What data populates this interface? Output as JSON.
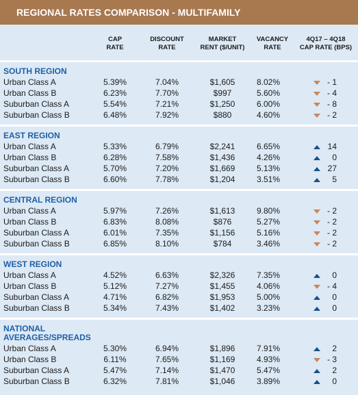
{
  "title": "REGIONAL RATES COMPARISON - MULTIFAMILY",
  "columns": [
    "CAP\nRATE",
    "DISCOUNT\nRATE",
    "MARKET\nRENT ($/UNIT)",
    "VACANCY\nRATE",
    "4Q17 – 4Q18\nCAP RATE (BPS)"
  ],
  "sections": [
    {
      "name": "SOUTH REGION",
      "rows": [
        [
          "Urban Class A",
          "5.39%",
          "7.04%",
          "$1,605",
          "8.02%",
          "- 1"
        ],
        [
          "Urban Class B",
          "6.23%",
          "7.70%",
          "$997",
          "5.60%",
          "- 4"
        ],
        [
          "Suburban Class A",
          "5.54%",
          "7.21%",
          "$1,250",
          "6.00%",
          "- 8"
        ],
        [
          "Suburban Class B",
          "6.48%",
          "7.92%",
          "$880",
          "4.60%",
          "- 2"
        ]
      ]
    },
    {
      "name": "EAST REGION",
      "rows": [
        [
          "Urban Class A",
          "5.33%",
          "6.79%",
          "$2,241",
          "6.65%",
          "14"
        ],
        [
          "Urban Class B",
          "6.28%",
          "7.58%",
          "$1,436",
          "4.26%",
          "0"
        ],
        [
          "Suburban Class A",
          "5.70%",
          "7.20%",
          "$1,669",
          "5.13%",
          "27"
        ],
        [
          "Suburban Class B",
          "6.60%",
          "7.78%",
          "$1,204",
          "3.51%",
          "5"
        ]
      ]
    },
    {
      "name": "CENTRAL REGION",
      "rows": [
        [
          "Urban Class A",
          "5.97%",
          "7.26%",
          "$1,613",
          "9.80%",
          "- 2"
        ],
        [
          "Urban Class B",
          "6.83%",
          "8.08%",
          "$876",
          "5.27%",
          "- 2"
        ],
        [
          "Suburban Class A",
          "6.01%",
          "7.35%",
          "$1,156",
          "5.16%",
          "- 2"
        ],
        [
          "Suburban Class B",
          "6.85%",
          "8.10%",
          "$784",
          "3.46%",
          "- 2"
        ]
      ]
    },
    {
      "name": "WEST REGION",
      "rows": [
        [
          "Urban Class A",
          "4.52%",
          "6.63%",
          "$2,326",
          "7.35%",
          "0"
        ],
        [
          "Urban Class B",
          "5.12%",
          "7.27%",
          "$1,455",
          "4.06%",
          "- 4"
        ],
        [
          "Suburban Class A",
          "4.71%",
          "6.82%",
          "$1,953",
          "5.00%",
          "0"
        ],
        [
          "Suburban Class B",
          "5.34%",
          "7.43%",
          "$1,402",
          "3.23%",
          "0"
        ]
      ]
    },
    {
      "name": "NATIONAL\nAVERAGES/SPREADS",
      "rows": [
        [
          "Urban Class A",
          "5.30%",
          "6.94%",
          "$1,896",
          "7.91%",
          "2"
        ],
        [
          "Urban Class B",
          "6.11%",
          "7.65%",
          "$1,169",
          "4.93%",
          "- 3"
        ],
        [
          "Suburban Class A",
          "5.47%",
          "7.14%",
          "$1,470",
          "5.47%",
          "2"
        ],
        [
          "Suburban Class B",
          "6.32%",
          "7.81%",
          "$1,046",
          "3.89%",
          "0"
        ]
      ]
    }
  ]
}
